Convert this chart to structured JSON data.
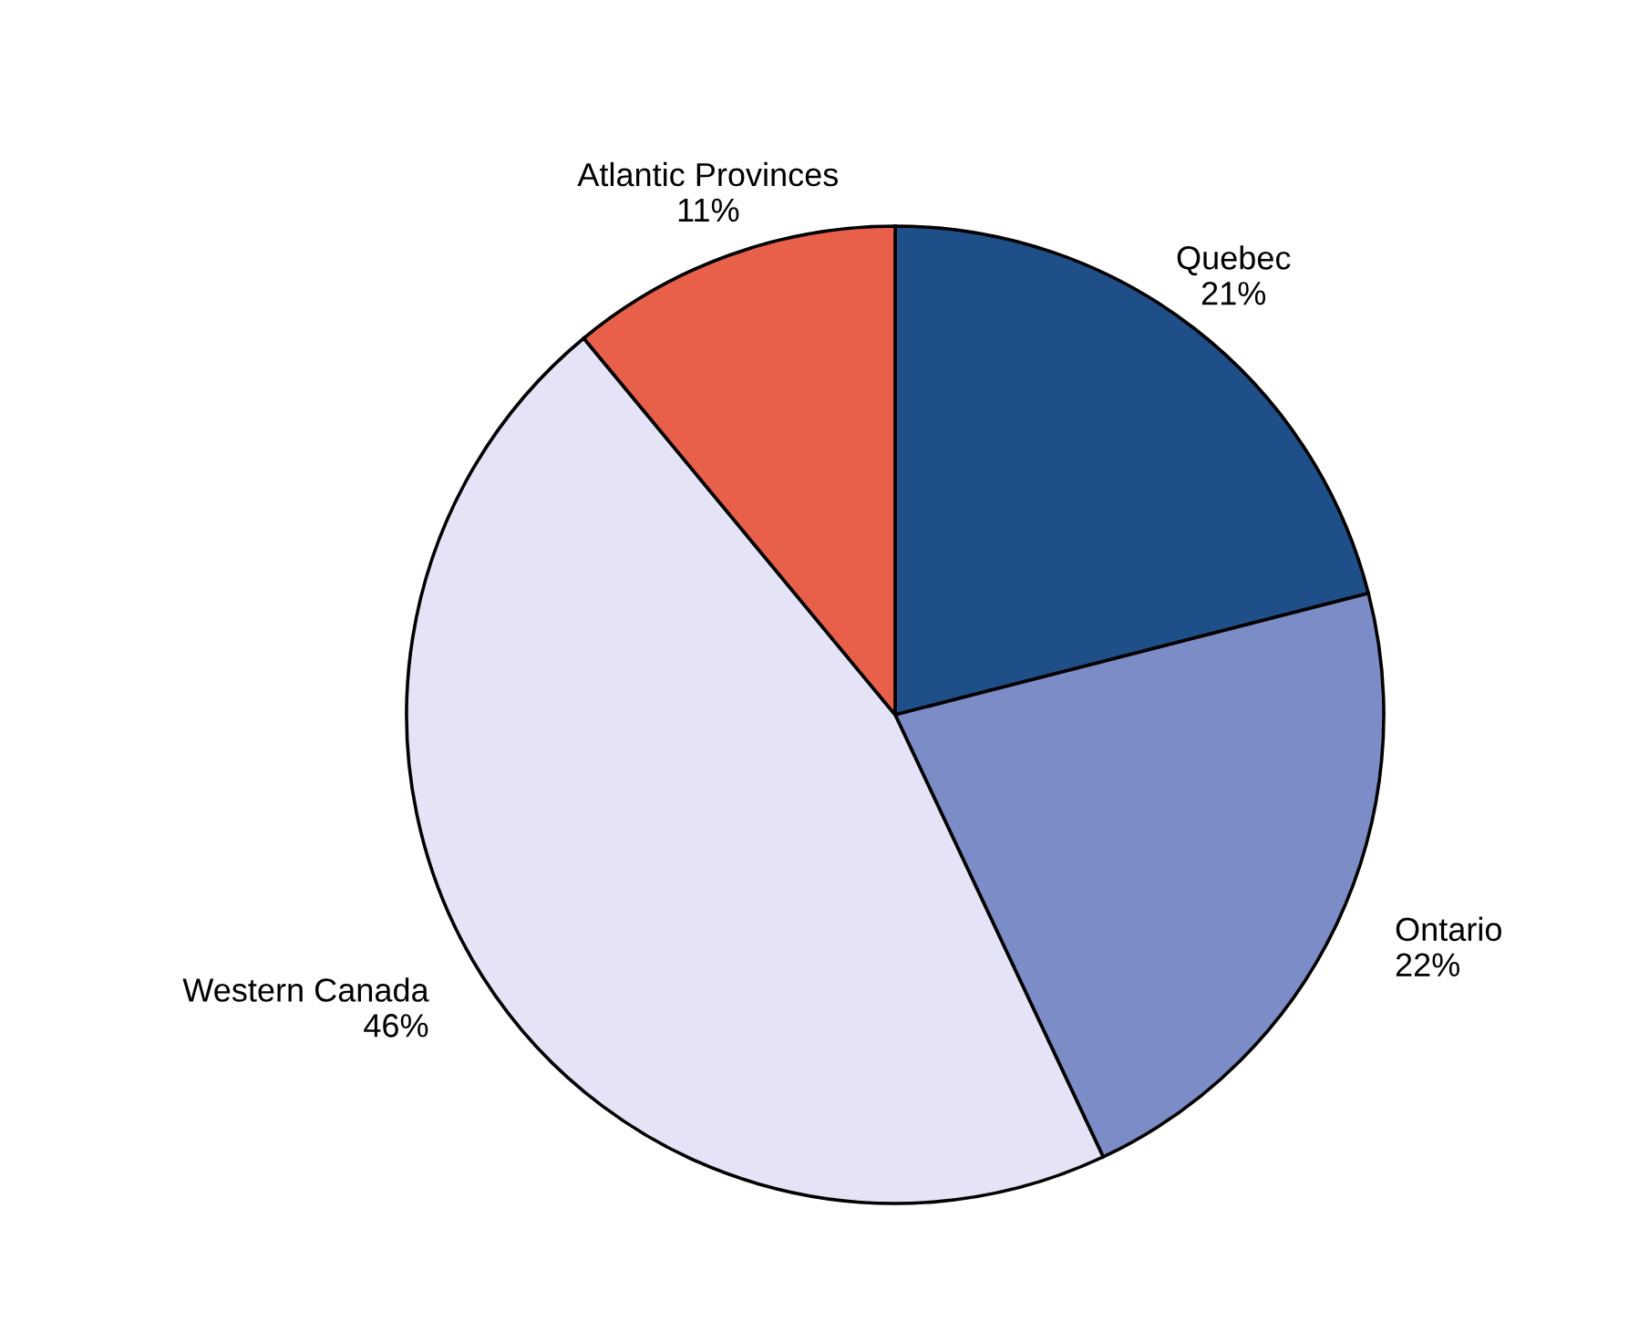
{
  "chart_data": {
    "type": "pie",
    "categories": [
      "Quebec",
      "Ontario",
      "Western Canada",
      "Atlantic Provinces"
    ],
    "values": [
      21,
      22,
      46,
      11
    ],
    "value_labels": [
      "21%",
      "22%",
      "46%",
      "11%"
    ],
    "colors": [
      "#1f4f88",
      "#7b8cc6",
      "#e4e4f6",
      "#e8604a"
    ]
  }
}
